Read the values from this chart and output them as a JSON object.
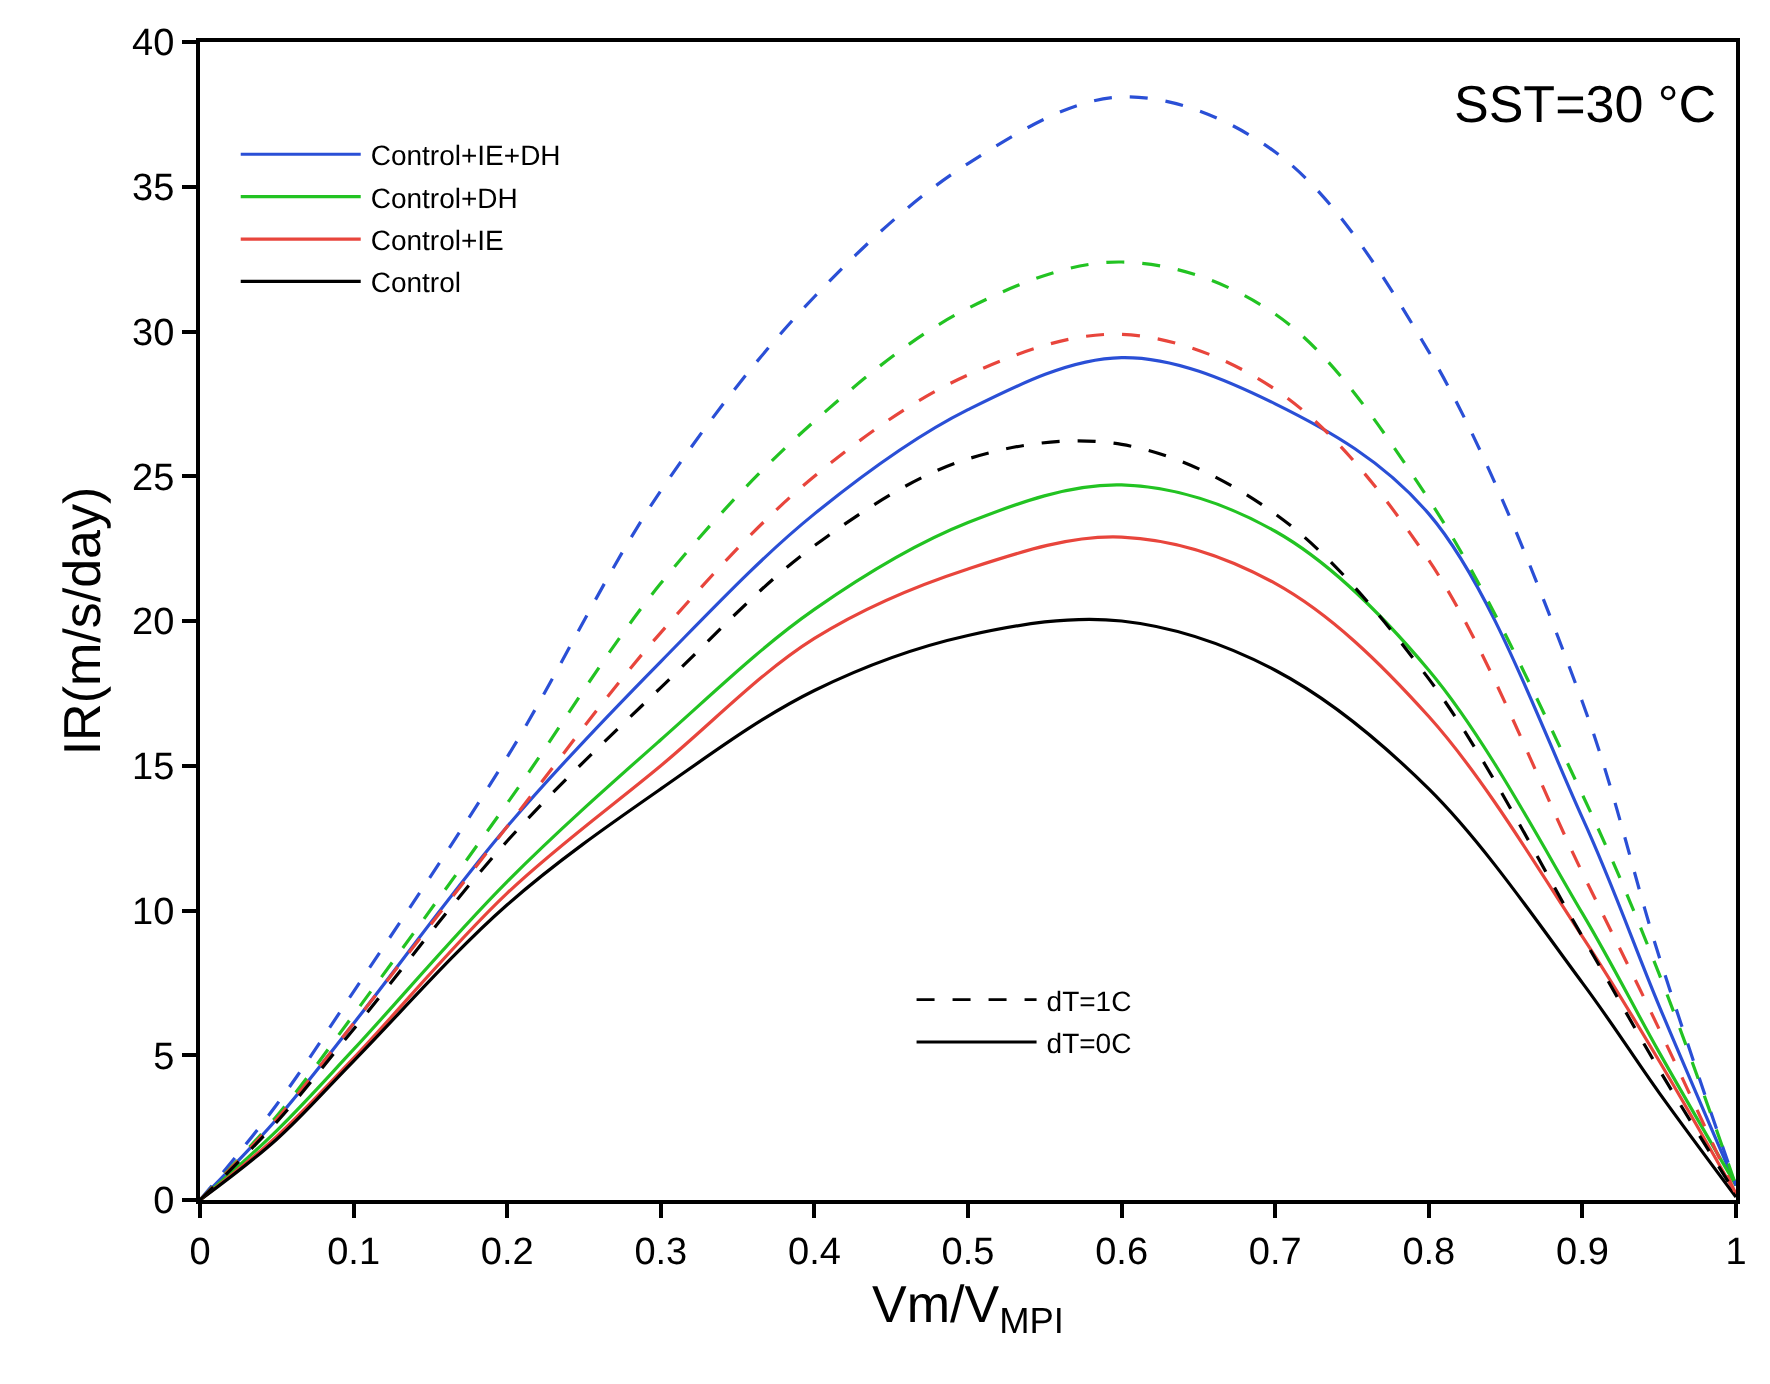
{
  "chart_data": {
    "type": "line",
    "xlabel": "Vm/V$_{MPI}$",
    "ylabel": "IR(m/s/day)",
    "annotations": [
      "SST=30 °C",
      "dT=1C",
      "dT=0C"
    ],
    "x": [
      0,
      0.05,
      0.1,
      0.2,
      0.3,
      0.4,
      0.5,
      0.6,
      0.7,
      0.8,
      0.9,
      0.95,
      1.0
    ],
    "series": [
      {
        "name": "Control+IE+DH",
        "color": "#2a4fd6",
        "line_style": "solid",
        "values": [
          0,
          2.8,
          6.1,
          12.9,
          18.6,
          23.7,
          27.3,
          29.1,
          27.5,
          23.7,
          13.2,
          6.7,
          0.5
        ]
      },
      {
        "name": "Control+DH",
        "color": "#22c322",
        "line_style": "solid",
        "values": [
          0,
          2.4,
          5.2,
          11.0,
          15.9,
          20.4,
          23.4,
          24.7,
          23.1,
          18.3,
          9.9,
          5.1,
          0.5
        ]
      },
      {
        "name": "Control+IE",
        "color": "#e8453c",
        "line_style": "solid",
        "values": [
          0,
          2.2,
          4.9,
          10.6,
          15.0,
          19.4,
          21.8,
          22.9,
          21.3,
          16.7,
          9.1,
          4.8,
          0.2
        ]
      },
      {
        "name": "Control",
        "color": "#000000",
        "line_style": "solid",
        "values": [
          0,
          2.1,
          4.8,
          10.2,
          14.2,
          17.6,
          19.5,
          20.0,
          18.3,
          14.2,
          7.5,
          3.7,
          0.1
        ]
      },
      {
        "color": "#2a4fd6",
        "line_style": "dashed",
        "values": [
          0,
          3.3,
          7.2,
          15.3,
          24.5,
          31.2,
          35.8,
          38.1,
          36.2,
          29.3,
          17.2,
          8.4,
          0.5
        ]
      },
      {
        "color": "#22c322",
        "line_style": "dashed",
        "values": [
          0,
          2.9,
          6.4,
          13.7,
          21.3,
          26.9,
          30.8,
          32.4,
          30.6,
          24.2,
          14.0,
          7.8,
          0.5
        ]
      },
      {
        "color": "#e8453c",
        "line_style": "dashed",
        "values": [
          0,
          2.8,
          6.1,
          12.9,
          19.6,
          25.0,
          28.5,
          29.9,
          28.0,
          22.1,
          11.3,
          5.9,
          0.2
        ]
      },
      {
        "color": "#000000",
        "line_style": "dashed",
        "values": [
          0,
          2.7,
          5.9,
          12.4,
          17.7,
          22.6,
          25.6,
          26.1,
          23.7,
          18.0,
          9.1,
          4.5,
          0.2
        ]
      }
    ],
    "xlim": [
      0,
      1
    ],
    "xticks": [
      0,
      0.1,
      0.2,
      0.3,
      0.4,
      0.5,
      0.6,
      0.7,
      0.8,
      0.9,
      1
    ],
    "ylim": [
      0,
      40
    ],
    "yticks": [
      0,
      5,
      10,
      15,
      20,
      25,
      30,
      35,
      40
    ],
    "legend": "top left"
  }
}
